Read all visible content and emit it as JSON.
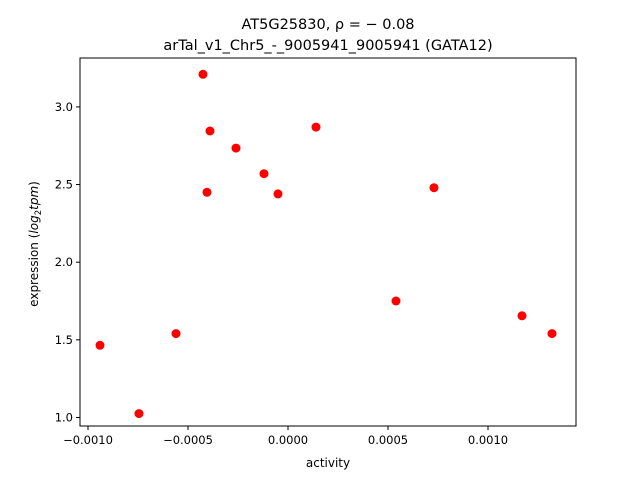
{
  "chart_data": {
    "type": "scatter",
    "title_line1": "AT5G25830, ρ = − 0.08",
    "title_line2": "arTal_v1_Chr5_-_9005941_9005941 (GATA12)",
    "xlabel": "activity",
    "ylabel_prefix": "expression (",
    "ylabel_math": "log",
    "ylabel_sub": "2",
    "ylabel_math2": "tpm",
    "ylabel_suffix": ")",
    "xlim": [
      -0.00104,
      0.00144
    ],
    "ylim": [
      0.945,
      3.315
    ],
    "x_ticks": [
      {
        "value": -0.001,
        "label": "−0.0010"
      },
      {
        "value": -0.0005,
        "label": "−0.0005"
      },
      {
        "value": 0.0,
        "label": "0.0000"
      },
      {
        "value": 0.0005,
        "label": "0.0005"
      },
      {
        "value": 0.001,
        "label": "0.0010"
      }
    ],
    "y_ticks": [
      {
        "value": 1.0,
        "label": "1.0"
      },
      {
        "value": 1.5,
        "label": "1.5"
      },
      {
        "value": 2.0,
        "label": "2.0"
      },
      {
        "value": 2.5,
        "label": "2.5"
      },
      {
        "value": 3.0,
        "label": "3.0"
      }
    ],
    "grid": false,
    "marker_color": "#ff0000",
    "points": [
      {
        "x": -0.00094,
        "y": 1.465
      },
      {
        "x": -0.000745,
        "y": 1.025
      },
      {
        "x": -0.00056,
        "y": 1.54
      },
      {
        "x": -0.000425,
        "y": 3.21
      },
      {
        "x": -0.00039,
        "y": 2.845
      },
      {
        "x": -0.000405,
        "y": 2.45
      },
      {
        "x": -0.00026,
        "y": 2.735
      },
      {
        "x": -0.00012,
        "y": 2.57
      },
      {
        "x": -5e-05,
        "y": 2.44
      },
      {
        "x": 0.00014,
        "y": 2.87
      },
      {
        "x": 0.00054,
        "y": 1.75
      },
      {
        "x": 0.00073,
        "y": 2.48
      },
      {
        "x": 0.00117,
        "y": 1.655
      },
      {
        "x": 0.00132,
        "y": 1.54
      }
    ]
  }
}
